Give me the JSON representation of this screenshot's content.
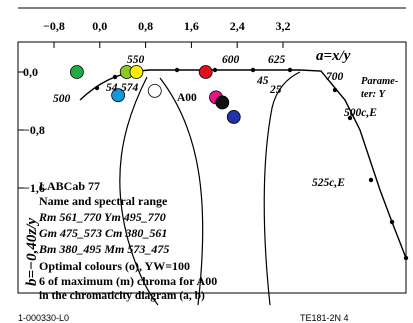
{
  "chart_data": {
    "type": "scatter",
    "xlabel": "a=x/y",
    "ylabel": "b=−0,40z/y",
    "xlim": [
      -0.8,
      3.2
    ],
    "ylim": [
      -1.6,
      0.0
    ],
    "x_ticks": [
      "-0,8",
      "0,0",
      "0,8",
      "1,6",
      "2,4",
      "3,2"
    ],
    "y_ticks": [
      "0,0",
      "-0,8",
      "-1,6"
    ],
    "curve_labels": [
      "500",
      "550",
      "600",
      "625",
      "700",
      "Parameter: Y",
      "500c,E",
      "525c,E",
      "574",
      "54",
      "45",
      "25",
      "A00"
    ],
    "series": [
      {
        "values": [
          {
            "a": -0.4,
            "b": 0.0,
            "color": "#22aa44"
          },
          {
            "a": 0.47,
            "b": 0.0,
            "color": "#88cc22"
          },
          {
            "a": 0.64,
            "b": 0.0,
            "color": "#ffee00"
          },
          {
            "a": 1.85,
            "b": 0.0,
            "color": "#e0101e"
          },
          {
            "a": 2.03,
            "b": -0.35,
            "color": "#e81488"
          },
          {
            "a": 2.14,
            "b": -0.42,
            "color": "#111111"
          },
          {
            "a": 2.34,
            "b": -0.62,
            "color": "#2233aa"
          },
          {
            "a": 0.32,
            "b": -0.32,
            "color": "#1199dd"
          },
          {
            "a": 0.96,
            "b": -0.26,
            "color": "#ffffff"
          }
        ]
      }
    ],
    "info": {
      "title": "LABCab 77",
      "line1": "Name and spectral range",
      "line2": "Rm 561_770  Ym 495_770",
      "line3": "Gm 475_573  Cm 380_561",
      "line4": "Bm 380_495  Mm 573_475",
      "line5": "Optimal colours (o), YW=100",
      "line6": "6 of maximum (m) chroma for A00",
      "line7": "in the chromaticity diagram (a, b)"
    },
    "footer": {
      "left": "1-000330-L0",
      "right": "TE181-2N 4"
    }
  }
}
